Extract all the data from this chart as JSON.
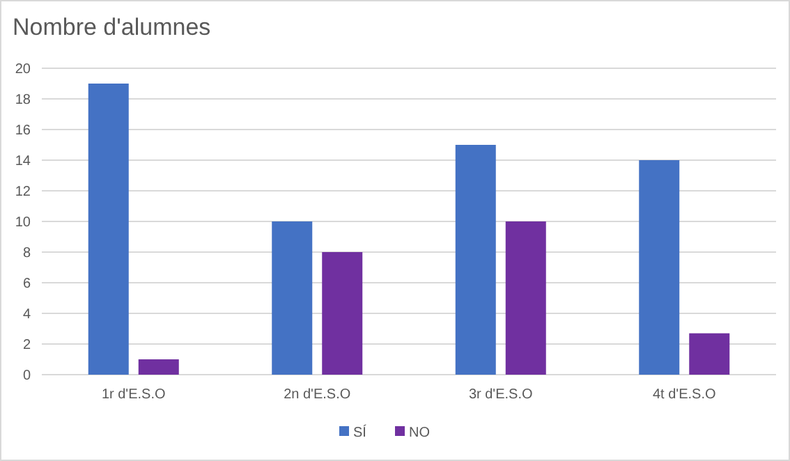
{
  "chart_data": {
    "type": "bar",
    "title": "Nombre d'alumnes",
    "categories": [
      "1r d'E.S.O",
      "2n d'E.S.O",
      "3r d'E.S.O",
      "4t d'E.S.O"
    ],
    "series": [
      {
        "name": "SÍ",
        "color": "#4472c4",
        "values": [
          19,
          10,
          15,
          14
        ]
      },
      {
        "name": "NO",
        "color": "#7030a0",
        "values": [
          1,
          8,
          10,
          2.7
        ]
      }
    ],
    "ylim": [
      0,
      20
    ],
    "yticks": [
      0,
      2,
      4,
      6,
      8,
      10,
      12,
      14,
      16,
      18,
      20
    ],
    "grid": "y",
    "legend": "bottom"
  }
}
